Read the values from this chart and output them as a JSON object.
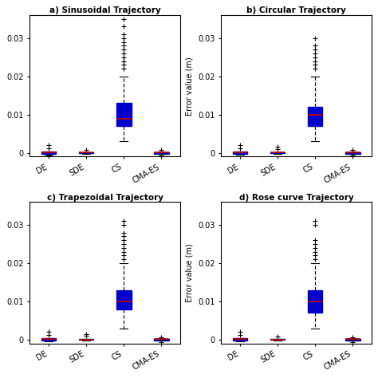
{
  "titles": [
    "a) Sinusoidal Trajectory",
    "b) Circular Trajectory",
    "c) Trapezoidal Trajectory",
    "d) Rose curve Trajectory"
  ],
  "categories": [
    "DE",
    "SDE",
    "CS",
    "CMA-ES"
  ],
  "ylabel": "Error value (m)",
  "ylim": [
    -0.001,
    0.036
  ],
  "yticks": [
    0,
    0.01,
    0.02,
    0.03
  ],
  "ytick_labels": [
    "0",
    "0.01",
    "0.02",
    "0.03"
  ],
  "box_color": "#0000cc",
  "box_facecolor": "white",
  "median_color": "#cc0000",
  "flier_color": "#cc0000",
  "whisker_color": "#000000",
  "subplots": [
    {
      "title": "a) Sinusoidal Trajectory",
      "show_ylabel": false,
      "data": {
        "DE": {
          "q1": -0.0002,
          "median": 0.0001,
          "q3": 0.0003,
          "whislo": -0.0004,
          "whishi": 0.0004,
          "fliers": [
            0.0012,
            0.002,
            -0.0008
          ]
        },
        "SDE": {
          "q1": -0.0001,
          "median": 5e-05,
          "q3": 0.0002,
          "whislo": -0.0002,
          "whishi": 0.0002,
          "fliers": [
            0.0008
          ]
        },
        "CS": {
          "q1": 0.007,
          "median": 0.009,
          "q3": 0.013,
          "whislo": 0.003,
          "whishi": 0.02,
          "fliers": [
            0.022,
            0.023,
            0.024,
            0.025,
            0.026,
            0.027,
            0.028,
            0.029,
            0.03,
            0.031,
            0.033,
            0.035
          ]
        },
        "CMA-ES": {
          "q1": -0.0002,
          "median": 0.0001,
          "q3": 0.0002,
          "whislo": -0.0003,
          "whishi": 0.0003,
          "fliers": [
            0.0007,
            -0.0006
          ]
        }
      }
    },
    {
      "title": "b) Circular Trajectory",
      "show_ylabel": true,
      "data": {
        "DE": {
          "q1": -0.0002,
          "median": 0.0001,
          "q3": 0.0003,
          "whislo": -0.0004,
          "whishi": 0.0004,
          "fliers": [
            0.0012,
            0.002
          ]
        },
        "SDE": {
          "q1": -0.0001,
          "median": 5e-05,
          "q3": 0.0002,
          "whislo": -0.0002,
          "whishi": 0.0002,
          "fliers": [
            0.001,
            0.0015
          ]
        },
        "CS": {
          "q1": 0.007,
          "median": 0.01,
          "q3": 0.012,
          "whislo": 0.003,
          "whishi": 0.02,
          "fliers": [
            0.022,
            0.023,
            0.024,
            0.025,
            0.026,
            0.027,
            0.028,
            0.03
          ]
        },
        "CMA-ES": {
          "q1": -0.0002,
          "median": 0.0001,
          "q3": 0.0002,
          "whislo": -0.0003,
          "whishi": 0.0003,
          "fliers": [
            0.0007,
            -0.0006
          ]
        }
      }
    },
    {
      "title": "c) Trapezoidal Trajectory",
      "show_ylabel": false,
      "data": {
        "DE": {
          "q1": -0.0002,
          "median": 0.0001,
          "q3": 0.0003,
          "whislo": -0.0004,
          "whishi": 0.0004,
          "fliers": [
            0.0012,
            0.002
          ]
        },
        "SDE": {
          "q1": -0.0001,
          "median": 5e-05,
          "q3": 0.0002,
          "whislo": -0.0002,
          "whishi": 0.0002,
          "fliers": [
            0.001,
            0.0015
          ]
        },
        "CS": {
          "q1": 0.008,
          "median": 0.01,
          "q3": 0.013,
          "whislo": 0.003,
          "whishi": 0.02,
          "fliers": [
            0.021,
            0.022,
            0.023,
            0.024,
            0.025,
            0.026,
            0.027,
            0.028,
            0.03,
            0.031
          ]
        },
        "CMA-ES": {
          "q1": -0.0002,
          "median": 0.0001,
          "q3": 0.0002,
          "whislo": -0.0003,
          "whishi": 0.0003,
          "fliers": [
            0.0007,
            -0.0006
          ]
        }
      }
    },
    {
      "title": "d) Rose curve Trajectory",
      "show_ylabel": true,
      "data": {
        "DE": {
          "q1": -0.0002,
          "median": 0.0001,
          "q3": 0.0003,
          "whislo": -0.0004,
          "whishi": 0.0004,
          "fliers": [
            0.0012,
            0.002
          ]
        },
        "SDE": {
          "q1": -0.0001,
          "median": 5e-05,
          "q3": 0.0002,
          "whislo": -0.0002,
          "whishi": 0.0002,
          "fliers": [
            0.0008
          ]
        },
        "CS": {
          "q1": 0.007,
          "median": 0.01,
          "q3": 0.013,
          "whislo": 0.003,
          "whishi": 0.02,
          "fliers": [
            0.021,
            0.022,
            0.023,
            0.024,
            0.025,
            0.026,
            0.03,
            0.031
          ]
        },
        "CMA-ES": {
          "q1": -0.0002,
          "median": 0.0001,
          "q3": 0.0002,
          "whislo": -0.0003,
          "whishi": 0.0003,
          "fliers": [
            0.0007,
            -0.0006
          ]
        }
      }
    }
  ]
}
